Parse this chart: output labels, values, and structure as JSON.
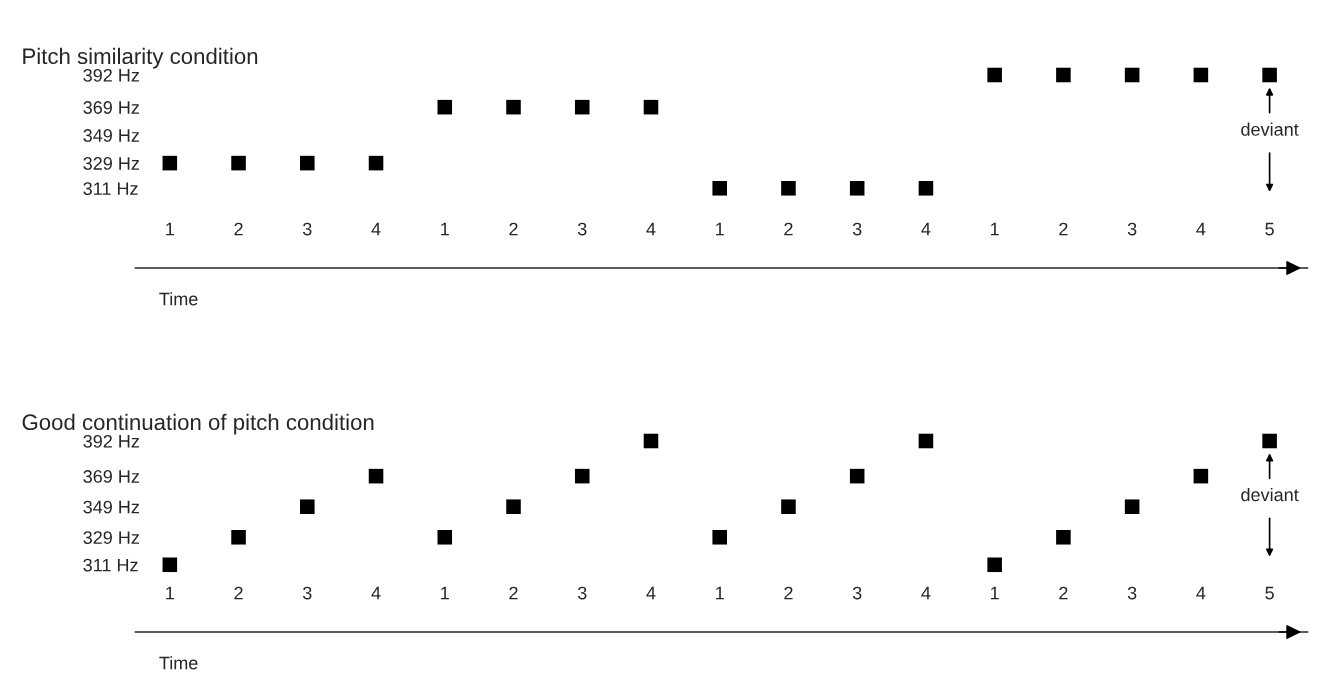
{
  "chart_data": [
    {
      "type": "scatter",
      "title": "Pitch similarity condition",
      "xlabel": "Time",
      "marker": "square",
      "categories": [
        "1",
        "2",
        "3",
        "4",
        "1",
        "2",
        "3",
        "4",
        "1",
        "2",
        "3",
        "4",
        "1",
        "2",
        "3",
        "4",
        "5"
      ],
      "series": [
        {
          "color": "#000000",
          "values": [
            329,
            329,
            329,
            329,
            369,
            369,
            369,
            369,
            311,
            311,
            311,
            311,
            392,
            392,
            392,
            392,
            392
          ]
        }
      ],
      "ylim": [
        254,
        392
      ],
      "yticks": [
        {
          "value": 311,
          "label": "311 Hz"
        },
        {
          "value": 329,
          "label": "329 Hz"
        },
        {
          "value": 349,
          "label": "349 Hz"
        },
        {
          "value": 369,
          "label": "369 Hz"
        },
        {
          "value": 392,
          "label": "392 Hz"
        }
      ],
      "annotations": [
        "deviant"
      ]
    },
    {
      "type": "scatter",
      "title": "Good continuation of pitch condition",
      "xlabel": "Time",
      "marker": "square",
      "categories": [
        "1",
        "2",
        "3",
        "4",
        "1",
        "2",
        "3",
        "4",
        "1",
        "2",
        "3",
        "4",
        "1",
        "2",
        "3",
        "4",
        "5"
      ],
      "series": [
        {
          "color": "#000000",
          "values": [
            311,
            329,
            349,
            369,
            329,
            349,
            369,
            392,
            329,
            349,
            369,
            392,
            311,
            329,
            349,
            369,
            392
          ]
        }
      ],
      "ylim": [
        267,
        392
      ],
      "yticks": [
        {
          "value": 311,
          "label": "311 Hz"
        },
        {
          "value": 329,
          "label": "329 Hz"
        },
        {
          "value": 349,
          "label": "349 Hz"
        },
        {
          "value": 369,
          "label": "369 Hz"
        },
        {
          "value": 392,
          "label": "392 Hz"
        }
      ],
      "annotations": [
        "deviant"
      ]
    }
  ]
}
